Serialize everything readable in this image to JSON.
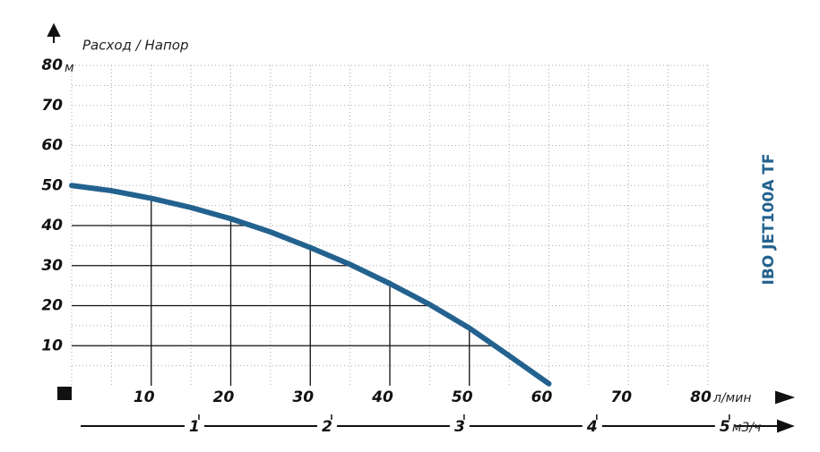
{
  "chart_data": {
    "type": "line",
    "title": "Расход / Напор",
    "side_title": "IBO JET100A TF",
    "y_unit": "м",
    "x_unit": "л/мин",
    "x2_unit": "м3/ч",
    "x": [
      0,
      5,
      10,
      15,
      20,
      25,
      30,
      35,
      40,
      45,
      50,
      55,
      60
    ],
    "series": [
      {
        "name": "IBO JET100A TF",
        "color": "#23628f",
        "values": [
          50,
          48.7,
          46.8,
          44.5,
          41.7,
          38.4,
          34.5,
          30.3,
          25.5,
          20.3,
          14.4,
          7.5,
          0.5
        ]
      }
    ],
    "xlim": [
      0,
      80
    ],
    "xticks": [
      10,
      20,
      30,
      40,
      50,
      60,
      70,
      80
    ],
    "ylim": [
      0,
      80
    ],
    "yticks": [
      10,
      20,
      30,
      40,
      50,
      60,
      70,
      80
    ],
    "x2lim": [
      0,
      5.4
    ],
    "x2ticks": [
      1,
      2,
      3,
      4,
      5
    ],
    "grid": true
  }
}
